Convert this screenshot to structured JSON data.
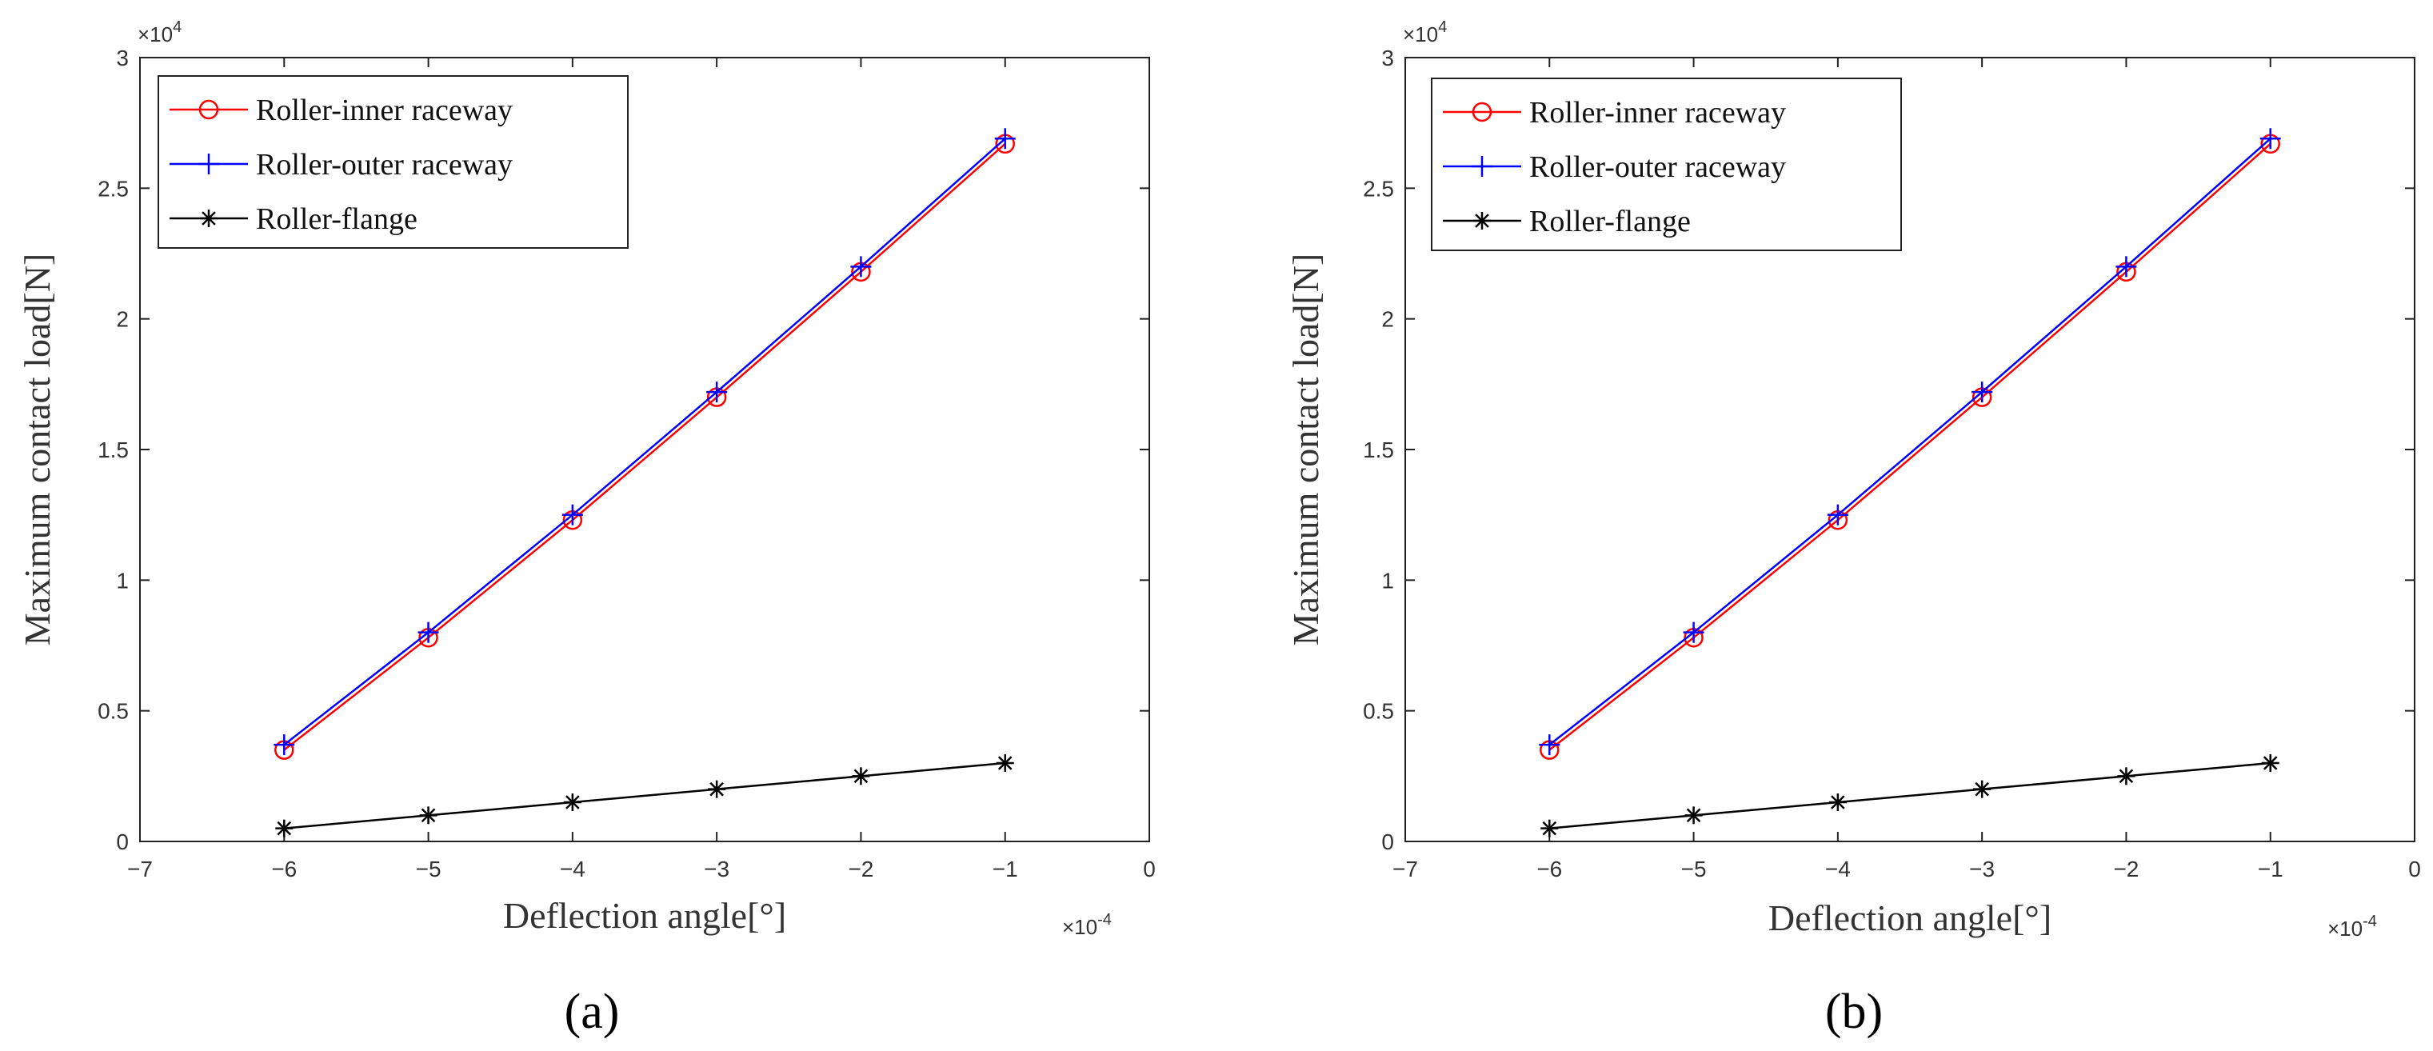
{
  "figure": {
    "panels": [
      {
        "label": "(a)"
      },
      {
        "label": "(b)"
      }
    ]
  },
  "chart_data": [
    {
      "type": "line",
      "panel": "(a)",
      "xlabel": "Deflection angle[°]",
      "ylabel": "Maximum contact load[N]",
      "x_exponent_label": "×10",
      "x_exponent": "-4",
      "y_exponent_label": "×10",
      "y_exponent": "4",
      "xlim": [
        -7,
        0
      ],
      "ylim": [
        0,
        3
      ],
      "x_ticks": [
        "-7",
        "-6",
        "-5",
        "-4",
        "-3",
        "-2",
        "-1",
        "0"
      ],
      "y_ticks": [
        "0",
        "0.5",
        "1",
        "1.5",
        "2",
        "2.5",
        "3"
      ],
      "x": [
        -6,
        -5,
        -4,
        -3,
        -2,
        -1
      ],
      "series": [
        {
          "name": "Roller-inner raceway",
          "color": "#ff0000",
          "marker": "circle",
          "values": [
            0.35,
            0.78,
            1.23,
            1.7,
            2.18,
            2.67
          ]
        },
        {
          "name": "Roller-outer raceway",
          "color": "#0000ff",
          "marker": "plus",
          "values": [
            0.37,
            0.8,
            1.25,
            1.72,
            2.2,
            2.69
          ]
        },
        {
          "name": "Roller-flange",
          "color": "#000000",
          "marker": "star",
          "values": [
            0.05,
            0.1,
            0.15,
            0.2,
            0.25,
            0.3
          ]
        }
      ]
    },
    {
      "type": "line",
      "panel": "(b)",
      "xlabel": "Deflection angle[°]",
      "ylabel": "Maximum contact load[N]",
      "x_exponent_label": "×10",
      "x_exponent": "-4",
      "y_exponent_label": "×10",
      "y_exponent": "4",
      "xlim": [
        -7,
        0
      ],
      "ylim": [
        0,
        3
      ],
      "x_ticks": [
        "-7",
        "-6",
        "-5",
        "-4",
        "-3",
        "-2",
        "-1",
        "0"
      ],
      "y_ticks": [
        "0",
        "0.5",
        "1",
        "1.5",
        "2",
        "2.5",
        "3"
      ],
      "x": [
        -6,
        -5,
        -4,
        -3,
        -2,
        -1
      ],
      "series": [
        {
          "name": "Roller-inner raceway",
          "color": "#ff0000",
          "marker": "circle",
          "values": [
            0.35,
            0.78,
            1.23,
            1.7,
            2.18,
            2.67
          ]
        },
        {
          "name": "Roller-outer raceway",
          "color": "#0000ff",
          "marker": "plus",
          "values": [
            0.37,
            0.8,
            1.25,
            1.72,
            2.2,
            2.69
          ]
        },
        {
          "name": "Roller-flange",
          "color": "#000000",
          "marker": "star",
          "values": [
            0.05,
            0.1,
            0.15,
            0.2,
            0.25,
            0.3
          ]
        }
      ]
    }
  ]
}
